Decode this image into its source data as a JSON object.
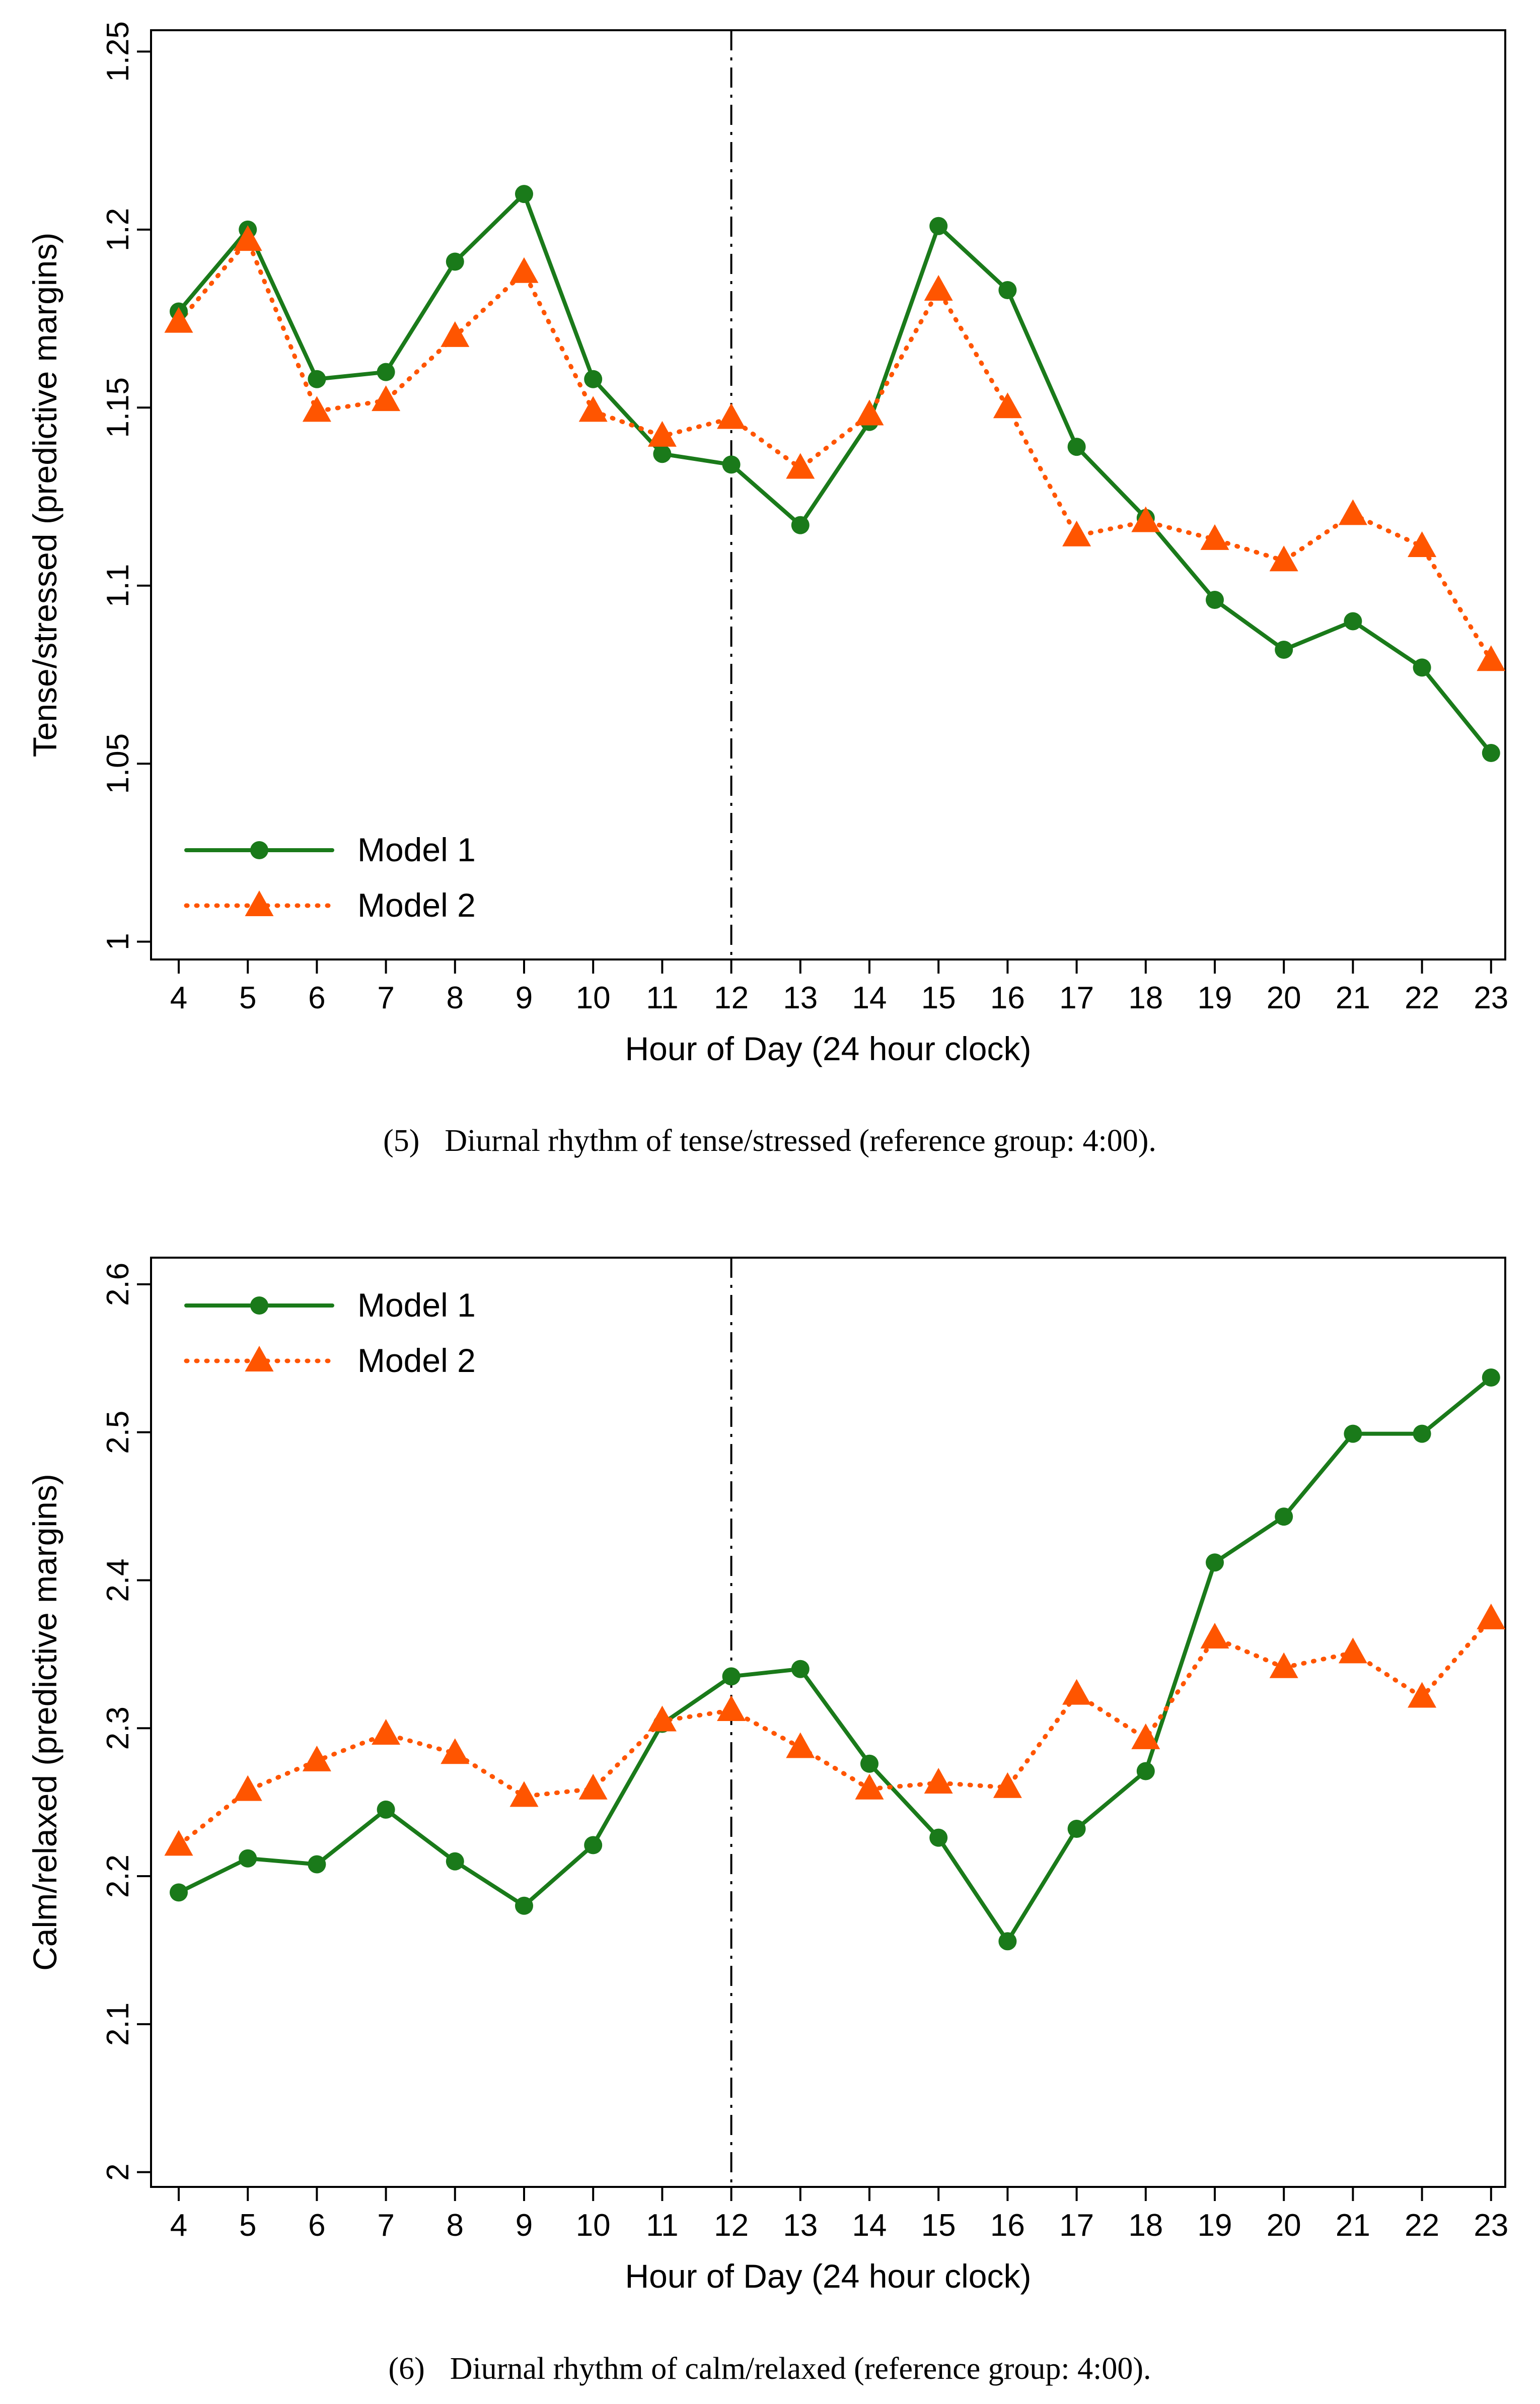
{
  "chart_data": [
    {
      "type": "line",
      "panel_label": "(5)",
      "caption": "Diurnal rhythm of tense/stressed (reference group: 4:00).",
      "xlabel": "Hour of Day (24 hour clock)",
      "ylabel": "Tense/stressed (predictive margins)",
      "x": [
        4,
        5,
        6,
        7,
        8,
        9,
        10,
        11,
        12,
        13,
        14,
        15,
        16,
        17,
        18,
        19,
        20,
        21,
        22,
        23
      ],
      "x_tick_labels": [
        "4",
        "5",
        "6",
        "7",
        "8",
        "9",
        "10",
        "11",
        "12",
        "13",
        "14",
        "15",
        "16",
        "17",
        "18",
        "19",
        "20",
        "21",
        "22",
        "23"
      ],
      "y_ticks": [
        1,
        1.05,
        1.1,
        1.15,
        1.2,
        1.25
      ],
      "y_tick_labels": [
        "1",
        "1.05",
        "1.1",
        "1.15",
        "1.2",
        "1.25"
      ],
      "ylim": [
        0.995,
        1.256
      ],
      "reference_line_x": 12,
      "legend_position": "bottom-left",
      "grid": false,
      "series": [
        {
          "name": "Model 1",
          "color": "#1a7a1a",
          "style": "solid",
          "marker": "circle",
          "values": [
            1.177,
            1.2,
            1.158,
            1.16,
            1.191,
            1.21,
            1.158,
            1.137,
            1.134,
            1.117,
            1.146,
            1.201,
            1.183,
            1.139,
            1.119,
            1.096,
            1.082,
            1.09,
            1.077,
            1.053
          ]
        },
        {
          "name": "Model 2",
          "color": "#ff5500",
          "style": "dotted",
          "marker": "triangle",
          "values": [
            1.174,
            1.197,
            1.149,
            1.152,
            1.17,
            1.188,
            1.149,
            1.142,
            1.147,
            1.133,
            1.148,
            1.183,
            1.15,
            1.114,
            1.118,
            1.113,
            1.107,
            1.12,
            1.111,
            1.079
          ]
        }
      ]
    },
    {
      "type": "line",
      "panel_label": "(6)",
      "caption": "Diurnal rhythm of calm/relaxed (reference group: 4:00).",
      "xlabel": "Hour of Day (24 hour clock)",
      "ylabel": "Calm/relaxed (predictive margins)",
      "x": [
        4,
        5,
        6,
        7,
        8,
        9,
        10,
        11,
        12,
        13,
        14,
        15,
        16,
        17,
        18,
        19,
        20,
        21,
        22,
        23
      ],
      "x_tick_labels": [
        "4",
        "5",
        "6",
        "7",
        "8",
        "9",
        "10",
        "11",
        "12",
        "13",
        "14",
        "15",
        "16",
        "17",
        "18",
        "19",
        "20",
        "21",
        "22",
        "23"
      ],
      "y_ticks": [
        2,
        2.1,
        2.2,
        2.3,
        2.4,
        2.5,
        2.6
      ],
      "y_tick_labels": [
        "2",
        "2.1",
        "2.2",
        "2.3",
        "2.4",
        "2.5",
        "2.6"
      ],
      "ylim": [
        1.99,
        2.618
      ],
      "reference_line_x": 12,
      "legend_position": "top-left",
      "grid": false,
      "series": [
        {
          "name": "Model 1",
          "color": "#1a7a1a",
          "style": "solid",
          "marker": "circle",
          "values": [
            2.189,
            2.212,
            2.208,
            2.245,
            2.21,
            2.18,
            2.221,
            2.303,
            2.335,
            2.34,
            2.276,
            2.226,
            2.156,
            2.232,
            2.271,
            2.412,
            2.443,
            2.499,
            2.499,
            2.537
          ]
        },
        {
          "name": "Model 2",
          "color": "#ff5500",
          "style": "dotted",
          "marker": "triangle",
          "values": [
            2.221,
            2.258,
            2.278,
            2.296,
            2.283,
            2.254,
            2.259,
            2.305,
            2.312,
            2.287,
            2.259,
            2.263,
            2.26,
            2.323,
            2.293,
            2.361,
            2.341,
            2.351,
            2.321,
            2.374
          ]
        }
      ]
    }
  ]
}
